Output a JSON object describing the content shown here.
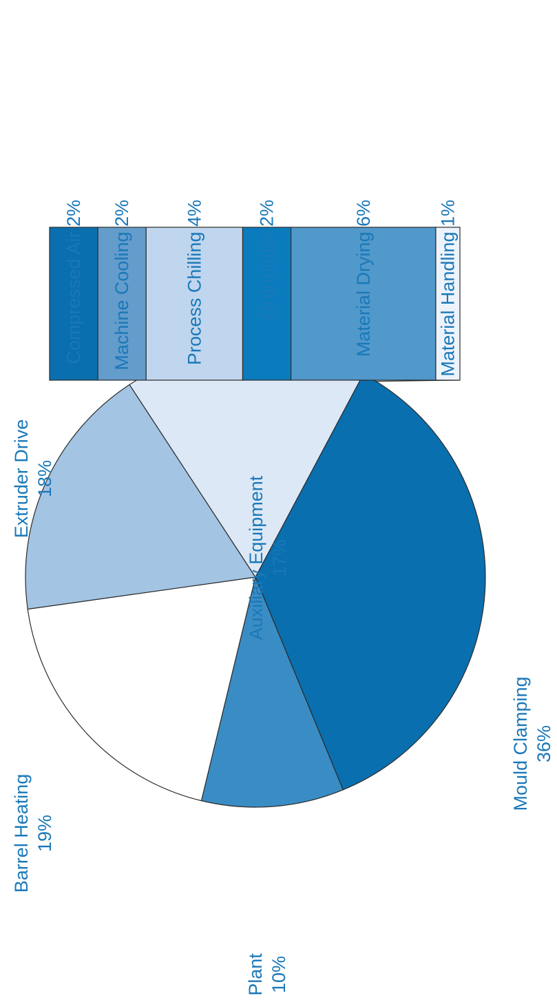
{
  "chart_data": {
    "type": "pie",
    "subtype": "pie-of-bar",
    "orientation": "rotated-90-ccw",
    "slices": [
      {
        "label": "Mould Clamping",
        "value": 36,
        "value_label": "36%",
        "color": "#0a6fae"
      },
      {
        "label": "Plant",
        "value": 10,
        "value_label": "10%",
        "color": "#3a8dc4"
      },
      {
        "label": "Barrel Heating",
        "value": 19,
        "value_label": "19%",
        "color": "#ffffff"
      },
      {
        "label": "Extruder Drive",
        "value": 18,
        "value_label": "18%",
        "color": "#a3c4e3"
      },
      {
        "label": "Auxiliary Equipment",
        "value": 17,
        "value_label": "17%",
        "color": "#dce8f5"
      }
    ],
    "breakdown": {
      "parent": "Auxiliary Equipment",
      "segments": [
        {
          "label": "Compressed Air 2%",
          "value": 2,
          "color": "#0a6fae"
        },
        {
          "label": "Machine Cooling 2%",
          "value": 2,
          "color": "#649ccc"
        },
        {
          "label": "Process Chilling 4%",
          "value": 4,
          "color": "#c0d6ee"
        },
        {
          "label": "Granulator 2%",
          "value": 2,
          "color": "#0a7bbd"
        },
        {
          "label": "Material Drying 6%",
          "value": 6,
          "color": "#5198cb"
        },
        {
          "label": "Material Handling 1%",
          "value": 1,
          "color": "#edf3fb"
        }
      ]
    }
  }
}
